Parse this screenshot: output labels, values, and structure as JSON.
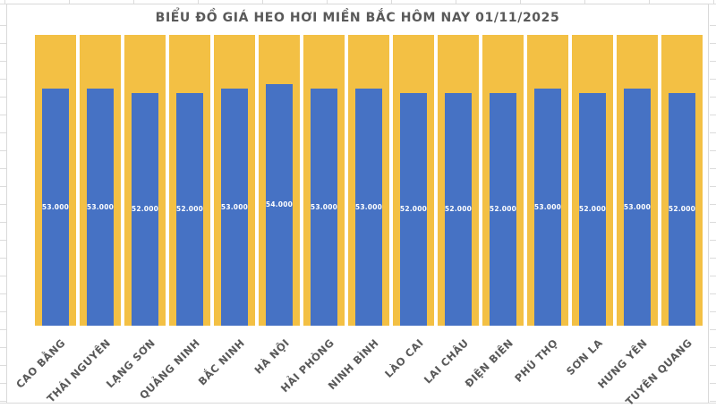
{
  "sheet": {
    "gridline_color": "#dcdcdc"
  },
  "chart": {
    "border_color": "#d9d9d9",
    "title_color": "#595959",
    "axis_label_color": "#595959"
  },
  "chart_data": {
    "type": "bar",
    "title": "BIỂU ĐỒ GIÁ HEO HƠI MIỀN BẮC HÔM NAY 01/11/2025",
    "categories": [
      "CAO BẰNG",
      "THÁI NGUYÊN",
      "LẠNG SƠN",
      "QUẢNG NINH",
      "BẮC NINH",
      "HÀ NỘI",
      "HẢI PHÒNG",
      "NINH BÌNH",
      "LÀO CAI",
      "LAI CHÂU",
      "ĐIỆN BIÊN",
      "PHÚ THỌ",
      "SƠN LA",
      "HƯNG YÊN",
      "TUYÊN QUANG"
    ],
    "values": [
      53000,
      53000,
      52000,
      52000,
      53000,
      54000,
      53000,
      53000,
      52000,
      52000,
      52000,
      53000,
      52000,
      53000,
      52000
    ],
    "value_labels": [
      "53.000",
      "53.000",
      "52.000",
      "52.000",
      "53.000",
      "54.000",
      "53.000",
      "53.000",
      "52.000",
      "52.000",
      "52.000",
      "53.000",
      "52.000",
      "53.000",
      "52.000"
    ],
    "ylim": [
      0,
      65000
    ],
    "xlabel": "",
    "ylabel": "",
    "legend": "none",
    "grid": "off",
    "bar_color": "#4672C4",
    "background_bar_color": "#F3C044",
    "value_label_color": "#ffffff"
  }
}
